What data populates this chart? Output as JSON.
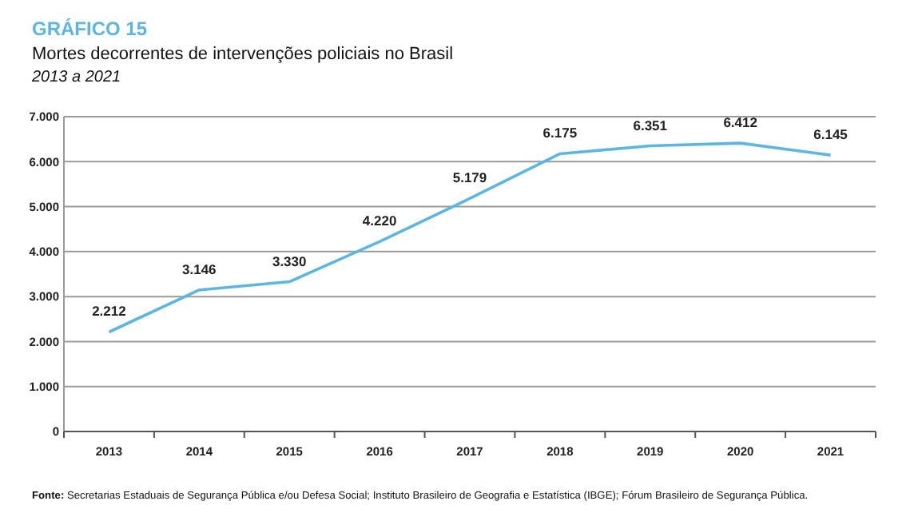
{
  "chart_data": {
    "type": "line",
    "title": "GRÁFICO 15",
    "subtitle": "Mortes decorrentes de intervenções policiais no Brasil",
    "annotations": [
      "2013 a 2021",
      "Fonte: Secretarias Estaduais de Segurança Pública e/ou Defesa Social; Instituto Brasileiro de Geografia e Estatística (IBGE); Fórum Brasileiro de Segurança Pública."
    ],
    "categories": [
      "2013",
      "2014",
      "2015",
      "2016",
      "2017",
      "2018",
      "2019",
      "2020",
      "2021"
    ],
    "series": [
      {
        "color": "#5bb6e4",
        "values": [
          2212,
          3146,
          3330,
          4220,
          5179,
          6175,
          6351,
          6412,
          6145
        ],
        "value_labels": [
          "2.212",
          "3.146",
          "3.330",
          "4.220",
          "5.179",
          "6.175",
          "6.351",
          "6.412",
          "6.145"
        ]
      }
    ],
    "ylim": [
      0,
      7000
    ],
    "yticks": [
      {
        "value": 0,
        "label": "0"
      },
      {
        "value": 1000,
        "label": "1.000"
      },
      {
        "value": 2000,
        "label": "2.000"
      },
      {
        "value": 3000,
        "label": "3.000"
      },
      {
        "value": 4000,
        "label": "4.000"
      },
      {
        "value": 5000,
        "label": "5.000"
      },
      {
        "value": 6000,
        "label": "6.000"
      },
      {
        "value": 7000,
        "label": "7.000"
      }
    ],
    "grid": "y",
    "marker": "none",
    "line_style": "solid"
  }
}
